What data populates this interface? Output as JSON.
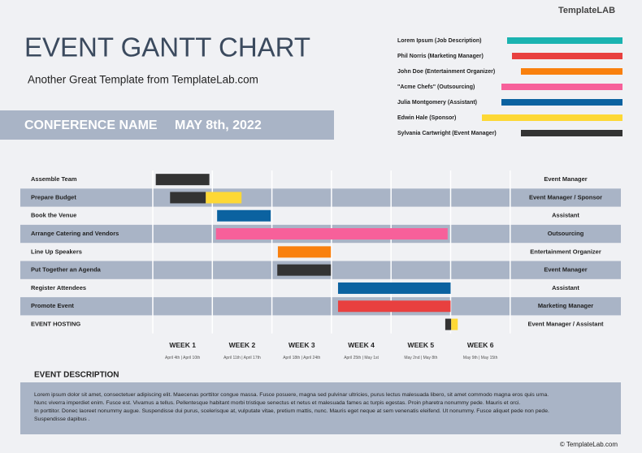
{
  "logo": "TemplateLAB",
  "title": "EVENT GANTT CHART",
  "subtitle": "Another Great Template from TemplateLab.com",
  "banner": {
    "name": "CONFERENCE NAME",
    "date": "MAY 8th, 2022"
  },
  "legend": [
    {
      "label": "Lorem Ipsum (Job Description)",
      "color": "#1ab3b0",
      "start": 624
    },
    {
      "label": "Phil Norris (Marketing Manager)",
      "color": "#e8403f",
      "start": 630
    },
    {
      "label": "John Doe (Entertainment Organizer)",
      "color": "#f9800e",
      "start": 641
    },
    {
      "label": "\"Acme Chefs\" (Outsourcing)",
      "color": "#f7609a",
      "start": 617
    },
    {
      "label": "Julia Montgomery (Assistant)",
      "color": "#0b62a0",
      "start": 617
    },
    {
      "label": "Edwin Hale (Sponsor)",
      "color": "#fdd835",
      "start": 593
    },
    {
      "label": "Sylvania Cartwright (Event Manager)",
      "color": "#333333",
      "start": 641
    }
  ],
  "weeks": [
    {
      "label": "WEEK 1",
      "dates": "April 4th | April 10th"
    },
    {
      "label": "WEEK 2",
      "dates": "April 11th | April 17th"
    },
    {
      "label": "WEEK 3",
      "dates": "April 18th | April 24th"
    },
    {
      "label": "WEEK 4",
      "dates": "April 25th | May 1st"
    },
    {
      "label": "WEEK 5",
      "dates": "May 2nd | May 8th"
    },
    {
      "label": "WEEK 6",
      "dates": "May 9th | May 15th"
    }
  ],
  "tasks": [
    {
      "name": "Assemble Team",
      "owner": "Event Manager",
      "bars": [
        {
          "start": 0.05,
          "end": 0.95,
          "color": "#333333"
        }
      ]
    },
    {
      "name": "Prepare Budget",
      "owner": "Event Manager / Sponsor",
      "bars": [
        {
          "start": 0.29,
          "end": 0.89,
          "color": "#333333"
        },
        {
          "start": 0.89,
          "end": 1.49,
          "color": "#fdd835"
        }
      ]
    },
    {
      "name": "Book the Venue",
      "owner": "Assistant",
      "bars": [
        {
          "start": 1.08,
          "end": 1.98,
          "color": "#0b62a0"
        }
      ]
    },
    {
      "name": "Arrange Catering and Vendors",
      "owner": "Outsourcing",
      "bars": [
        {
          "start": 1.06,
          "end": 4.95,
          "color": "#f7609a"
        }
      ]
    },
    {
      "name": "Line Up Speakers",
      "owner": "Entertainment Organizer",
      "bars": [
        {
          "start": 2.1,
          "end": 2.99,
          "color": "#f9800e"
        }
      ]
    },
    {
      "name": "Put Together an Agenda",
      "owner": "Event Manager",
      "bars": [
        {
          "start": 2.09,
          "end": 2.99,
          "color": "#333333"
        }
      ]
    },
    {
      "name": "Register Attendees",
      "owner": "Assistant",
      "bars": [
        {
          "start": 3.11,
          "end": 5.0,
          "color": "#0b62a0"
        }
      ]
    },
    {
      "name": "Promote Event",
      "owner": "Marketing Manager",
      "bars": [
        {
          "start": 3.11,
          "end": 5.0,
          "color": "#e8403f"
        }
      ]
    },
    {
      "name": "EVENT HOSTING",
      "owner": "Event Manager / Assistant",
      "bars": [
        {
          "start": 4.91,
          "end": 5.01,
          "color": "#333333"
        },
        {
          "start": 5.01,
          "end": 5.12,
          "color": "#fdd835"
        }
      ]
    }
  ],
  "description": {
    "heading": "EVENT DESCRIPTION",
    "lines": [
      "Lorem ipsum dolor sit amet, consectetuer adipiscing elit. Maecenas porttitor congue massa. Fusce posuere, magna sed pulvinar ultricies, purus lectus malesuada libero, sit amet commodo magna eros quis urna.",
      "Nunc viverra imperdiet enim. Fusce est. Vivamus a tellus. Pellentesque habitant morbi tristique senectus et netus et malesuada fames ac turpis egestas. Proin pharetra nonummy pede. Mauris et orci.",
      "In porttitor. Donec laoreet nonummy augue. Suspendisse dui purus, scelerisque at, vulputate vitae, pretium mattis, nunc. Mauris eget neque at sem venenatis eleifend. Ut nonummy. Fusce aliquet pede non pede.",
      "Suspendisse dapibus ."
    ]
  },
  "footer": "© TemplateLab.com"
}
